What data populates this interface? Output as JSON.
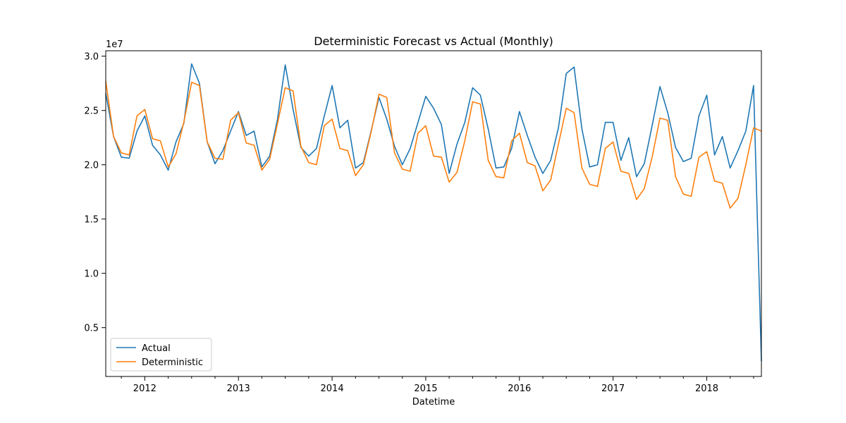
{
  "chart_data": {
    "type": "line",
    "title": "Deterministic Forecast vs Actual (Monthly)",
    "xlabel": "Datetime",
    "ylabel": "",
    "y_offset_text": "1e7",
    "y_multiplier": 10000000,
    "ylim": [
      0.05,
      3.05
    ],
    "xlim": [
      "2011-08",
      "2018-08"
    ],
    "y_ticks": [
      0.5,
      1.0,
      1.5,
      2.0,
      2.5,
      3.0
    ],
    "y_tick_labels": [
      "0.5",
      "1.0",
      "1.5",
      "2.0",
      "2.5",
      "3.0"
    ],
    "x_ticks": [
      "2012-01",
      "2013-01",
      "2014-01",
      "2015-01",
      "2016-01",
      "2017-01",
      "2018-01"
    ],
    "x_tick_labels": [
      "2012",
      "2013",
      "2014",
      "2015",
      "2016",
      "2017",
      "2018"
    ],
    "grid": false,
    "legend_position": "bottom-left",
    "x": [
      "2011-08",
      "2011-09",
      "2011-10",
      "2011-11",
      "2011-12",
      "2012-01",
      "2012-02",
      "2012-03",
      "2012-04",
      "2012-05",
      "2012-06",
      "2012-07",
      "2012-08",
      "2012-09",
      "2012-10",
      "2012-11",
      "2012-12",
      "2013-01",
      "2013-02",
      "2013-03",
      "2013-04",
      "2013-05",
      "2013-06",
      "2013-07",
      "2013-08",
      "2013-09",
      "2013-10",
      "2013-11",
      "2013-12",
      "2014-01",
      "2014-02",
      "2014-03",
      "2014-04",
      "2014-05",
      "2014-06",
      "2014-07",
      "2014-08",
      "2014-09",
      "2014-10",
      "2014-11",
      "2014-12",
      "2015-01",
      "2015-02",
      "2015-03",
      "2015-04",
      "2015-05",
      "2015-06",
      "2015-07",
      "2015-08",
      "2015-09",
      "2015-10",
      "2015-11",
      "2015-12",
      "2016-01",
      "2016-02",
      "2016-03",
      "2016-04",
      "2016-05",
      "2016-06",
      "2016-07",
      "2016-08",
      "2016-09",
      "2016-10",
      "2016-11",
      "2016-12",
      "2017-01",
      "2017-02",
      "2017-03",
      "2017-04",
      "2017-05",
      "2017-06",
      "2017-07",
      "2017-08",
      "2017-09",
      "2017-10",
      "2017-11",
      "2017-12",
      "2018-01",
      "2018-02",
      "2018-03",
      "2018-04",
      "2018-05",
      "2018-06",
      "2018-07",
      "2018-08"
    ],
    "series": [
      {
        "name": "Actual",
        "color": "#1f77b4",
        "values": [
          2.66,
          2.26,
          2.07,
          2.06,
          2.31,
          2.45,
          2.18,
          2.09,
          1.95,
          2.21,
          2.38,
          2.93,
          2.75,
          2.21,
          2.01,
          2.13,
          2.31,
          2.49,
          2.27,
          2.31,
          1.98,
          2.08,
          2.42,
          2.92,
          2.51,
          2.16,
          2.08,
          2.15,
          2.45,
          2.73,
          2.34,
          2.41,
          1.97,
          2.02,
          2.31,
          2.62,
          2.42,
          2.17,
          2.0,
          2.15,
          2.39,
          2.63,
          2.52,
          2.37,
          1.92,
          2.19,
          2.39,
          2.71,
          2.64,
          2.33,
          1.97,
          1.98,
          2.15,
          2.49,
          2.27,
          2.07,
          1.92,
          2.04,
          2.34,
          2.84,
          2.9,
          2.33,
          1.98,
          2.0,
          2.39,
          2.39,
          2.04,
          2.25,
          1.89,
          2.01,
          2.36,
          2.72,
          2.48,
          2.16,
          2.03,
          2.06,
          2.45,
          2.64,
          2.09,
          2.26,
          1.97,
          2.13,
          2.31,
          2.73,
          0.19
        ]
      },
      {
        "name": "Deterministic",
        "color": "#ff7f0e",
        "values": [
          2.77,
          2.26,
          2.11,
          2.09,
          2.45,
          2.51,
          2.24,
          2.22,
          1.98,
          2.1,
          2.39,
          2.76,
          2.73,
          2.21,
          2.06,
          2.05,
          2.41,
          2.48,
          2.2,
          2.18,
          1.95,
          2.05,
          2.38,
          2.71,
          2.68,
          2.17,
          2.02,
          2.0,
          2.36,
          2.42,
          2.15,
          2.13,
          1.9,
          2.0,
          2.3,
          2.65,
          2.62,
          2.11,
          1.96,
          1.94,
          2.29,
          2.36,
          2.08,
          2.07,
          1.84,
          1.93,
          2.22,
          2.58,
          2.56,
          2.04,
          1.89,
          1.88,
          2.22,
          2.29,
          2.02,
          1.99,
          1.76,
          1.86,
          2.19,
          2.52,
          2.48,
          1.97,
          1.82,
          1.8,
          2.15,
          2.21,
          1.94,
          1.92,
          1.68,
          1.78,
          2.07,
          2.43,
          2.41,
          1.89,
          1.73,
          1.71,
          2.07,
          2.12,
          1.85,
          1.83,
          1.6,
          1.69,
          2.0,
          2.34,
          2.31
        ]
      }
    ]
  }
}
